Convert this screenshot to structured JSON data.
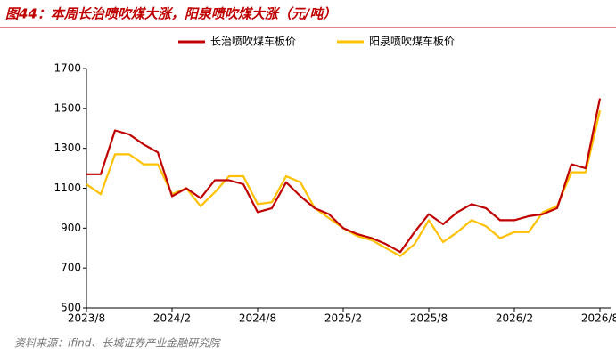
{
  "chart_data": {
    "type": "line",
    "title": "图44：本周长治喷吹煤大涨，阳泉喷吹煤大涨（元/吨）",
    "source": "资料来源：ifind、长城证券产业金融研究院",
    "categories": [
      "2023/8",
      null,
      null,
      null,
      null,
      null,
      "2024/2",
      null,
      null,
      null,
      null,
      null,
      "2024/8",
      null,
      null,
      null,
      null,
      null,
      "2025/2",
      null,
      null,
      null,
      null,
      null,
      "2025/8",
      null,
      null,
      null,
      null,
      null,
      "2026/2",
      null,
      null,
      null,
      null,
      null,
      "2026/8"
    ],
    "series": [
      {
        "name": "长治喷吹煤车板价",
        "color": "#c00000",
        "values": [
          1170,
          1170,
          1390,
          1370,
          1320,
          1280,
          1060,
          1100,
          1050,
          1140,
          1140,
          1120,
          980,
          1000,
          1130,
          1060,
          1000,
          970,
          900,
          870,
          850,
          820,
          780,
          880,
          970,
          920,
          980,
          1020,
          1000,
          940,
          940,
          960,
          970,
          1000,
          1220,
          1200,
          1550
        ]
      },
      {
        "name": "阳泉喷吹煤车板价",
        "color": "#ffc000",
        "values": [
          1120,
          1070,
          1270,
          1270,
          1220,
          1220,
          1070,
          1100,
          1010,
          1080,
          1160,
          1160,
          1020,
          1030,
          1160,
          1130,
          1000,
          950,
          900,
          860,
          840,
          800,
          760,
          820,
          940,
          830,
          880,
          940,
          910,
          850,
          880,
          880,
          980,
          1010,
          1180,
          1180,
          1490
        ]
      }
    ],
    "ylim": [
      500,
      1700
    ],
    "yticks": [
      500,
      700,
      900,
      1100,
      1300,
      1500,
      1700
    ],
    "grid": false
  }
}
